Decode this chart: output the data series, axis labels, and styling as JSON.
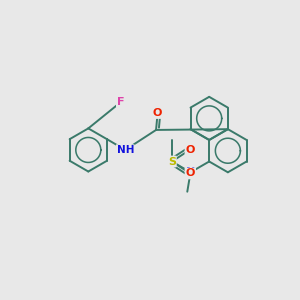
{
  "bg_color": "#e8e8e8",
  "bond_color": "#3a7a6a",
  "bond_width": 1.4,
  "atom_colors": {
    "F": "#dd44aa",
    "O": "#ee2200",
    "N": "#1111dd",
    "S": "#bbbb00",
    "C": "#3a7a6a"
  },
  "figsize": [
    3.0,
    3.0
  ],
  "dpi": 100,
  "xlim": [
    0,
    300
  ],
  "ylim": [
    0,
    300
  ]
}
